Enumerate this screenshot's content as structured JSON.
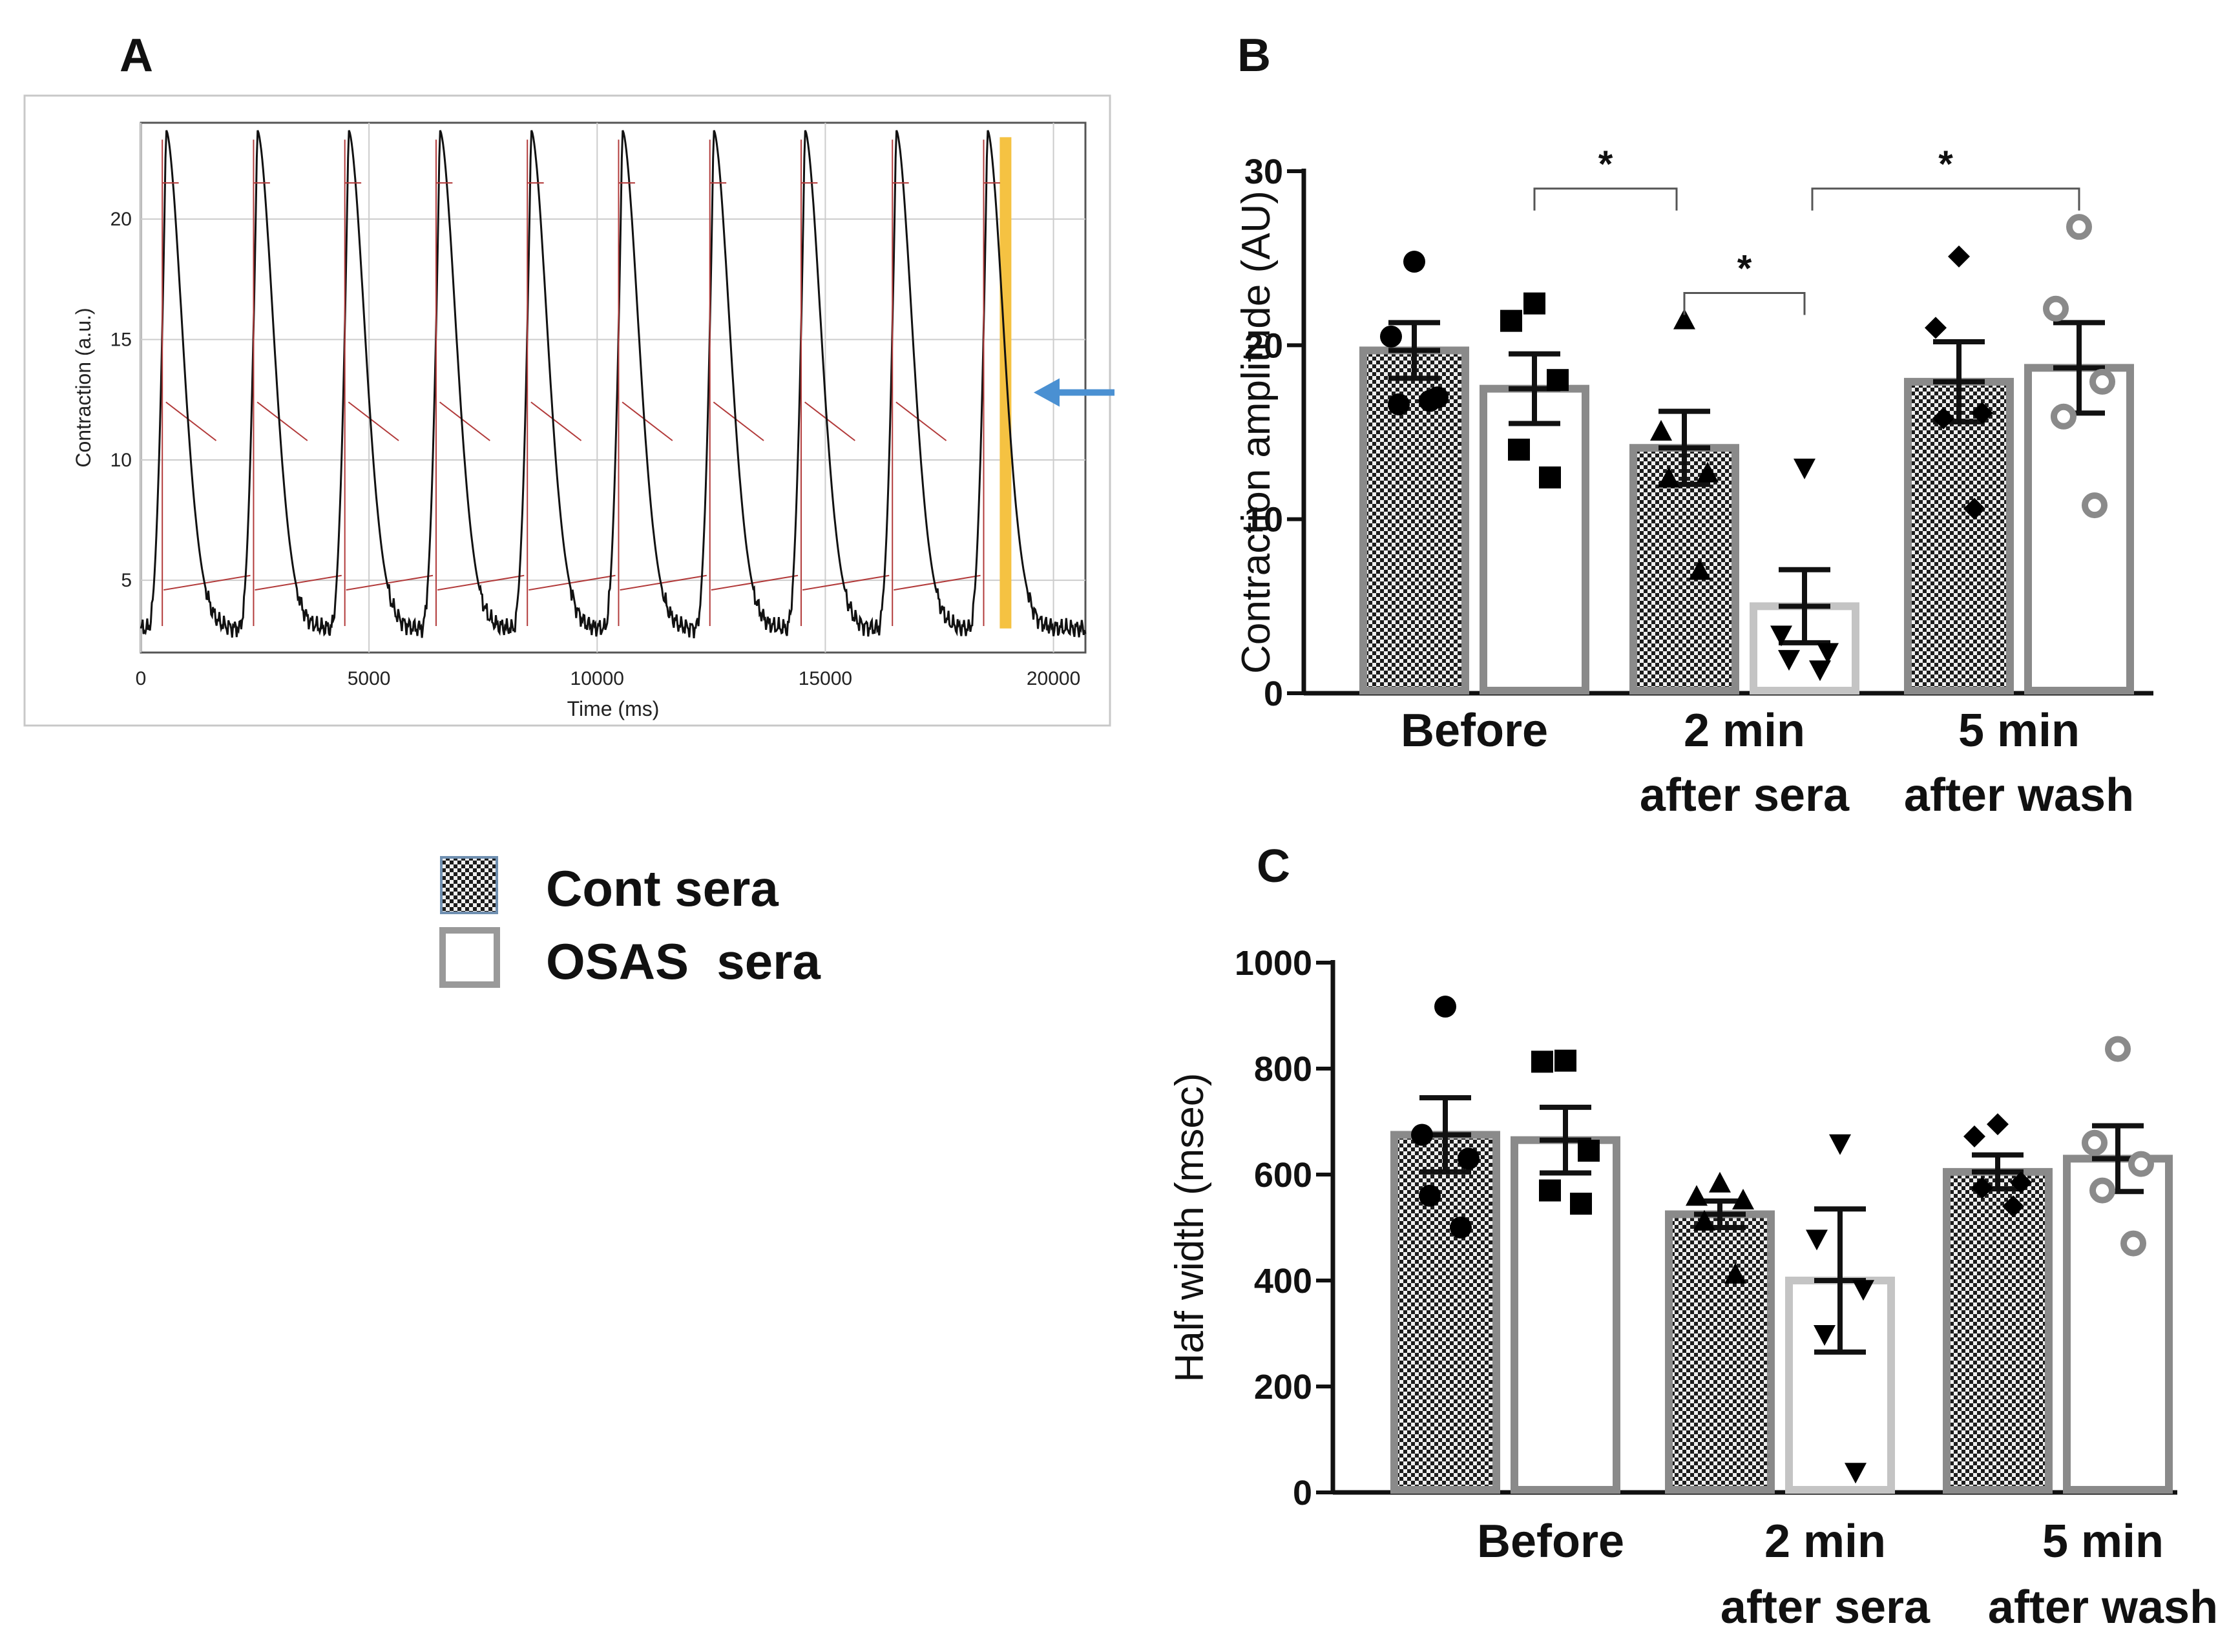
{
  "panels": {
    "a": "A",
    "b": "B",
    "c": "C"
  },
  "legend": [
    {
      "label": "Cont sera",
      "pattern": "checker"
    },
    {
      "label": "OSAS  sera",
      "pattern": "open"
    }
  ],
  "colors": {
    "trace": "#111111",
    "marker_line": "#b23a3a",
    "highlight": "#f5c242",
    "arrow": "#4a90d2",
    "bar_border": "#888888",
    "grid": "#cccccc"
  },
  "chart_data": [
    {
      "panel": "A",
      "type": "line",
      "xlabel": "Time (ms)",
      "ylabel": "Contraction (a.u.)",
      "xlim": [
        0,
        20700
      ],
      "ylim": [
        2,
        24
      ],
      "xticks": [
        0,
        5000,
        10000,
        15000,
        20000
      ],
      "yticks": [
        5,
        10,
        15,
        20
      ],
      "grid": true,
      "peak_times": [
        550,
        2550,
        4550,
        6550,
        8550,
        10550,
        12550,
        14550,
        16550,
        18550
      ],
      "peak_value": 23.7,
      "baseline": 3.0,
      "highlight_x": 18950,
      "arrow_y": 12.8
    },
    {
      "panel": "B",
      "type": "bar",
      "ylabel": "Contraction amplitude (AU)",
      "ylim": [
        0,
        30
      ],
      "yticks": [
        0,
        10,
        20,
        30
      ],
      "categories": [
        "Before",
        "2 min\nafter sera",
        "5 min\nafter wash"
      ],
      "series": [
        {
          "name": "Cont sera",
          "pattern": "checker",
          "values": [
            19.7,
            14.1,
            17.9
          ],
          "sem": [
            1.6,
            2.1,
            2.3
          ],
          "points": [
            [
              24.8,
              20.5,
              17.0,
              16.6,
              16.8
            ],
            [
              21.4,
              15.0,
              12.6,
              12.3,
              7.0
            ],
            [
              25.1,
              21.0,
              16.1,
              15.8,
              10.6
            ]
          ],
          "marker": [
            "circle",
            "triangle-up",
            "diamond"
          ]
        },
        {
          "name": "OSAS  sera",
          "pattern": "open",
          "values": [
            17.5,
            5.0,
            18.7
          ],
          "sem": [
            2.0,
            2.1,
            2.6
          ],
          "points": [
            [
              22.4,
              21.4,
              18.0,
              14.0,
              12.4
            ],
            [
              13.0,
              3.4,
              2.4,
              2.0,
              1.4
            ],
            [
              26.8,
              22.1,
              17.9,
              15.9,
              10.8
            ]
          ],
          "marker": [
            "square",
            "triangle-down",
            "ring"
          ]
        }
      ],
      "annotations": [
        {
          "text": "*",
          "from": [
            0,
            1
          ],
          "to": [
            1,
            0
          ],
          "level": 29.0
        },
        {
          "text": "*",
          "from": [
            1,
            1
          ],
          "to": [
            2,
            1
          ],
          "level": 29.0
        },
        {
          "text": "*",
          "from": [
            1,
            0
          ],
          "to": [
            1,
            1
          ],
          "level": 23.0
        }
      ]
    },
    {
      "panel": "C",
      "type": "bar",
      "ylabel": "Half width (msec)",
      "ylim": [
        0,
        1000
      ],
      "yticks": [
        0,
        200,
        400,
        600,
        800,
        1000
      ],
      "categories": [
        "Before",
        "2 min\nafter sera",
        "5 min\nafter wash"
      ],
      "series": [
        {
          "name": "Cont sera",
          "pattern": "checker",
          "values": [
            675,
            525,
            605
          ],
          "sem": [
            70,
            25,
            32
          ],
          "points": [
            [
              917,
              675,
              630,
              560,
              500
            ],
            [
              582,
              557,
              550,
              510,
              410
            ],
            [
              695,
              672,
              585,
              575,
              540
            ]
          ],
          "marker": [
            "circle",
            "triangle-up",
            "diamond"
          ]
        },
        {
          "name": "OSAS  sera",
          "pattern": "open",
          "values": [
            665,
            400,
            630
          ],
          "sem": [
            62,
            135,
            62
          ],
          "points": [
            [
              815,
              813,
              645,
              570,
              545
            ],
            [
              660,
              480,
              385,
              300,
              40
            ],
            [
              837,
              660,
              620,
              570,
              470
            ]
          ],
          "marker": [
            "square",
            "triangle-down",
            "ring"
          ]
        }
      ]
    }
  ]
}
